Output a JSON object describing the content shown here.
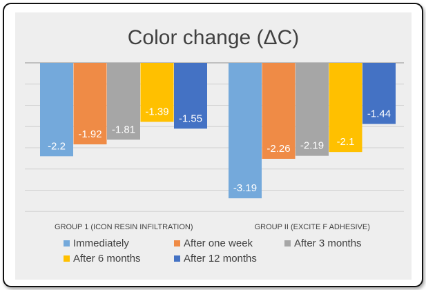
{
  "chart_data": {
    "type": "bar",
    "title": "Color change (ΔC)",
    "categories": [
      "GROUP 1 (ICON RESIN INFILTRATION)",
      "GROUP II (EXCITE F ADHESIVE)"
    ],
    "series": [
      {
        "name": "Immediately",
        "values": [
          -2.2,
          -3.19
        ],
        "color": "#74a9db"
      },
      {
        "name": "After one week",
        "values": [
          -1.92,
          -2.26
        ],
        "color": "#ef8b46"
      },
      {
        "name": "After 3 months",
        "values": [
          -1.81,
          -2.19
        ],
        "color": "#a6a6a6"
      },
      {
        "name": "After 6 months",
        "values": [
          -1.39,
          -2.1
        ],
        "color": "#ffc000"
      },
      {
        "name": "After 12 months",
        "values": [
          -1.55,
          -1.44
        ],
        "color": "#4472c4"
      }
    ],
    "ylim": [
      -3.5,
      0
    ],
    "xlabel": "",
    "ylabel": "",
    "grid": true,
    "legend": "bottom",
    "data_labels": true
  }
}
